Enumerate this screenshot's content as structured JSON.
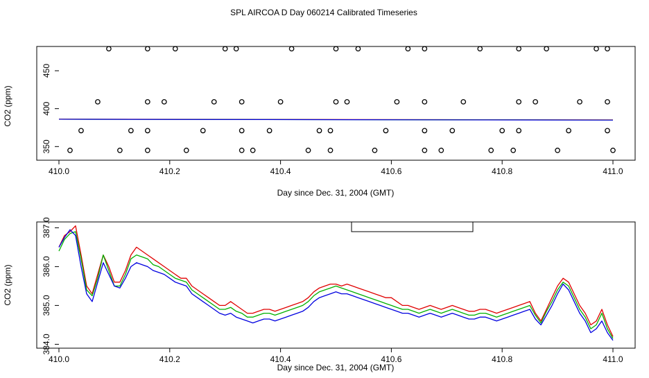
{
  "page_title": "SPL AIRCOA D  Day 060214  Calibrated Timeseries",
  "colors": {
    "red": "#e00000",
    "green": "#00b000",
    "blue": "#0000e0",
    "black": "#000000"
  },
  "chart_data": [
    {
      "type": "scatter",
      "title": "",
      "xlabel": "Day since Dec. 31, 2004 (GMT)",
      "ylabel": "CO2 (ppm)",
      "xlim": [
        410.0,
        411.0
      ],
      "ylim": [
        332,
        482
      ],
      "x_ticks": [
        410.0,
        410.2,
        410.4,
        410.6,
        410.8,
        411.0
      ],
      "x_tick_labels": [
        "410.0",
        "410.2",
        "410.4",
        "410.6",
        "410.8",
        "411.0"
      ],
      "y_ticks": [
        350,
        400,
        450
      ],
      "y_tick_labels": [
        "350",
        "400",
        "450"
      ],
      "grid": false,
      "marker_series": [
        {
          "marker": "circle",
          "y": 479,
          "x": [
            410.09,
            410.16,
            410.21,
            410.3,
            410.32,
            410.42,
            410.5,
            410.54,
            410.63,
            410.66,
            410.76,
            410.83,
            410.88,
            410.97,
            410.99
          ]
        },
        {
          "marker": "circle",
          "y": 409,
          "x": [
            410.07,
            410.16,
            410.19,
            410.28,
            410.33,
            410.4,
            410.5,
            410.52,
            410.61,
            410.66,
            410.73,
            410.83,
            410.86,
            410.94,
            410.99
          ]
        },
        {
          "marker": "circle",
          "y": 371,
          "x": [
            410.04,
            410.13,
            410.16,
            410.26,
            410.33,
            410.38,
            410.47,
            410.49,
            410.59,
            410.66,
            410.71,
            410.8,
            410.83,
            410.92,
            410.99
          ]
        },
        {
          "marker": "circle",
          "y": 345,
          "x": [
            410.02,
            410.11,
            410.16,
            410.23,
            410.33,
            410.35,
            410.45,
            410.49,
            410.57,
            410.66,
            410.69,
            410.78,
            410.82,
            410.9,
            411.0
          ]
        }
      ],
      "line_series": [
        {
          "color": "red",
          "x": [
            410.0,
            411.0
          ],
          "y": [
            386.2,
            385.2
          ]
        },
        {
          "color": "green",
          "x": [
            410.0,
            411.0
          ],
          "y": [
            386.0,
            385.0
          ]
        },
        {
          "color": "blue",
          "x": [
            410.0,
            411.0
          ],
          "y": [
            386.0,
            384.9
          ]
        }
      ]
    },
    {
      "type": "line",
      "title": "",
      "xlabel": "Day since Dec. 31, 2004 (GMT)",
      "ylabel": "CO2 (ppm)",
      "xlim": [
        410.0,
        411.0
      ],
      "ylim": [
        383.9,
        387.15
      ],
      "x_ticks": [
        410.0,
        410.2,
        410.4,
        410.6,
        410.8,
        411.0
      ],
      "x_tick_labels": [
        "410.0",
        "410.2",
        "410.4",
        "410.6",
        "410.8",
        "411.0"
      ],
      "y_ticks": [
        384.0,
        385.0,
        386.0,
        387.0
      ],
      "y_tick_labels": [
        "384.0",
        "385.0",
        "386.0",
        "387.0"
      ],
      "grid": false,
      "legend": {
        "placement": "top-center",
        "entries": []
      },
      "x": [
        410.0,
        410.01,
        410.02,
        410.03,
        410.04,
        410.05,
        410.06,
        410.07,
        410.08,
        410.09,
        410.1,
        410.11,
        410.12,
        410.13,
        410.14,
        410.15,
        410.16,
        410.17,
        410.18,
        410.19,
        410.2,
        410.21,
        410.22,
        410.23,
        410.24,
        410.25,
        410.26,
        410.27,
        410.28,
        410.29,
        410.3,
        410.31,
        410.32,
        410.33,
        410.34,
        410.35,
        410.36,
        410.37,
        410.38,
        410.39,
        410.4,
        410.41,
        410.42,
        410.43,
        410.44,
        410.45,
        410.46,
        410.47,
        410.48,
        410.49,
        410.5,
        410.51,
        410.52,
        410.53,
        410.54,
        410.55,
        410.56,
        410.57,
        410.58,
        410.59,
        410.6,
        410.61,
        410.62,
        410.63,
        410.64,
        410.65,
        410.66,
        410.67,
        410.68,
        410.69,
        410.7,
        410.71,
        410.72,
        410.73,
        410.74,
        410.75,
        410.76,
        410.77,
        410.78,
        410.79,
        410.8,
        410.81,
        410.82,
        410.83,
        410.84,
        410.85,
        410.86,
        410.87,
        410.88,
        410.89,
        410.9,
        410.91,
        410.92,
        410.93,
        410.94,
        410.95,
        410.96,
        410.97,
        410.98,
        410.99,
        411.0
      ],
      "series": [
        {
          "color": "red",
          "values": [
            386.5,
            386.8,
            386.9,
            387.05,
            386.3,
            385.5,
            385.3,
            385.8,
            386.3,
            386.0,
            385.6,
            385.6,
            385.9,
            386.3,
            386.5,
            386.4,
            386.3,
            386.2,
            386.1,
            386.0,
            385.9,
            385.8,
            385.7,
            385.7,
            385.5,
            385.4,
            385.3,
            385.2,
            385.1,
            385.0,
            385.0,
            385.1,
            385.0,
            384.9,
            384.8,
            384.8,
            384.85,
            384.9,
            384.9,
            384.85,
            384.9,
            384.95,
            385.0,
            385.05,
            385.1,
            385.2,
            385.35,
            385.45,
            385.5,
            385.55,
            385.55,
            385.5,
            385.55,
            385.5,
            385.45,
            385.4,
            385.35,
            385.3,
            385.25,
            385.2,
            385.2,
            385.1,
            385.0,
            385.0,
            384.95,
            384.9,
            384.95,
            385.0,
            384.95,
            384.9,
            384.95,
            385.0,
            384.95,
            384.9,
            384.85,
            384.85,
            384.9,
            384.9,
            384.85,
            384.8,
            384.85,
            384.9,
            384.95,
            385.0,
            385.05,
            385.1,
            384.8,
            384.6,
            384.9,
            385.2,
            385.5,
            385.7,
            385.6,
            385.3,
            385.0,
            384.8,
            384.5,
            384.6,
            384.9,
            384.5,
            384.2
          ]
        },
        {
          "color": "green",
          "values": [
            386.4,
            386.7,
            386.85,
            386.9,
            386.2,
            385.4,
            385.25,
            385.7,
            386.3,
            385.9,
            385.5,
            385.5,
            385.8,
            386.2,
            386.3,
            386.25,
            386.2,
            386.05,
            386.0,
            385.9,
            385.8,
            385.7,
            385.65,
            385.6,
            385.4,
            385.3,
            385.2,
            385.1,
            385.0,
            384.9,
            384.9,
            384.95,
            384.85,
            384.8,
            384.7,
            384.7,
            384.75,
            384.8,
            384.8,
            384.75,
            384.8,
            384.85,
            384.9,
            384.95,
            385.0,
            385.1,
            385.25,
            385.35,
            385.4,
            385.45,
            385.5,
            385.45,
            385.4,
            385.35,
            385.3,
            385.25,
            385.2,
            385.15,
            385.1,
            385.05,
            385.0,
            384.95,
            384.9,
            384.9,
            384.85,
            384.8,
            384.85,
            384.9,
            384.85,
            384.8,
            384.85,
            384.9,
            384.85,
            384.8,
            384.75,
            384.75,
            384.8,
            384.8,
            384.75,
            384.7,
            384.75,
            384.8,
            384.85,
            384.9,
            384.95,
            385.0,
            384.75,
            384.55,
            384.85,
            385.1,
            385.4,
            385.6,
            385.5,
            385.2,
            384.9,
            384.7,
            384.4,
            384.5,
            384.8,
            384.4,
            384.15
          ]
        },
        {
          "color": "blue",
          "values": [
            386.5,
            386.75,
            386.95,
            386.8,
            386.0,
            385.3,
            385.1,
            385.6,
            386.1,
            385.8,
            385.5,
            385.45,
            385.7,
            386.0,
            386.1,
            386.05,
            386.0,
            385.9,
            385.85,
            385.8,
            385.7,
            385.6,
            385.55,
            385.5,
            385.3,
            385.2,
            385.1,
            385.0,
            384.9,
            384.8,
            384.75,
            384.8,
            384.7,
            384.65,
            384.6,
            384.55,
            384.6,
            384.65,
            384.65,
            384.6,
            384.65,
            384.7,
            384.75,
            384.8,
            384.85,
            384.95,
            385.1,
            385.2,
            385.25,
            385.3,
            385.35,
            385.3,
            385.3,
            385.25,
            385.2,
            385.15,
            385.1,
            385.05,
            385.0,
            384.95,
            384.9,
            384.85,
            384.8,
            384.8,
            384.75,
            384.7,
            384.75,
            384.8,
            384.75,
            384.7,
            384.75,
            384.8,
            384.75,
            384.7,
            384.65,
            384.65,
            384.7,
            384.7,
            384.65,
            384.6,
            384.65,
            384.7,
            384.75,
            384.8,
            384.85,
            384.9,
            384.65,
            384.5,
            384.75,
            385.0,
            385.3,
            385.55,
            385.4,
            385.1,
            384.8,
            384.6,
            384.3,
            384.4,
            384.6,
            384.3,
            384.1
          ]
        }
      ]
    }
  ]
}
